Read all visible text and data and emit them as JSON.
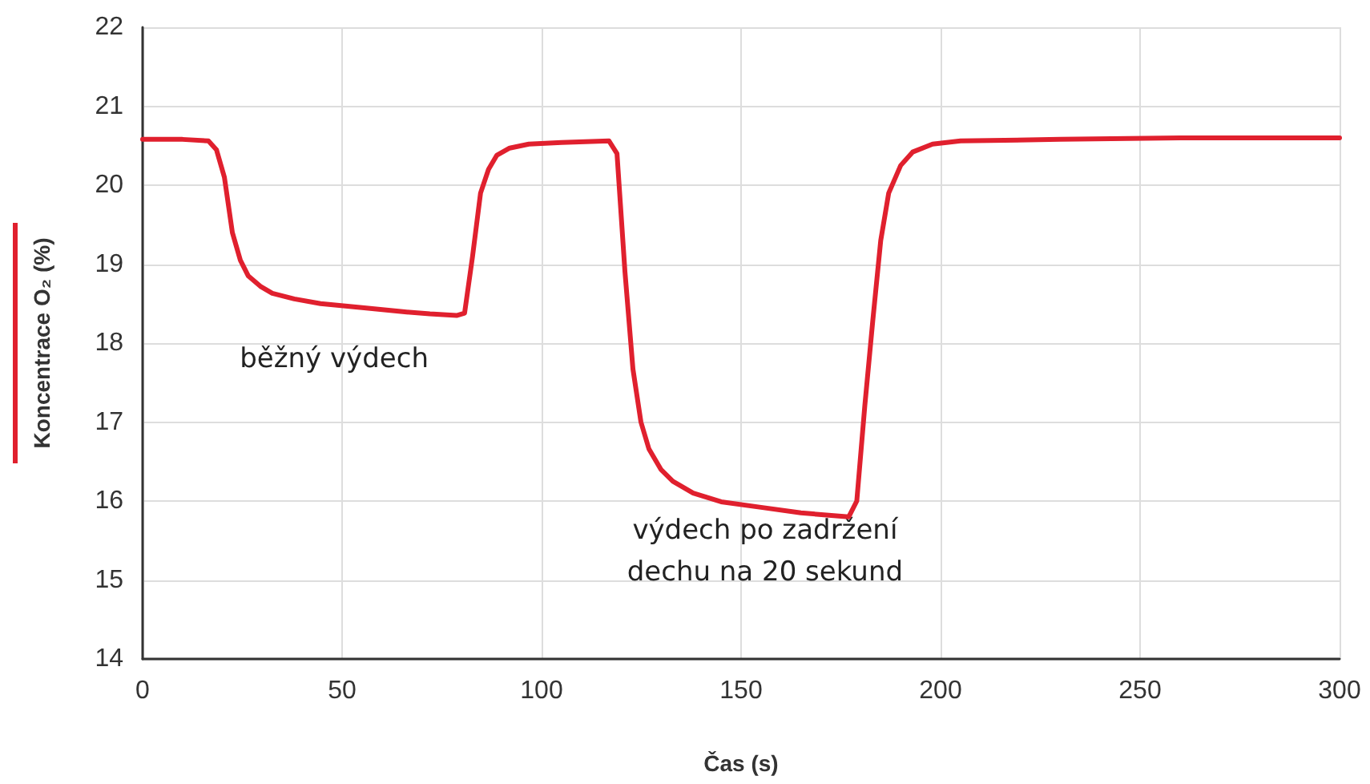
{
  "chart_data": {
    "type": "line",
    "xlabel": "Čas (s)",
    "ylabel": "Koncentrace O₂ (%)",
    "xlim": [
      0,
      300
    ],
    "xticks": [
      0,
      50,
      100,
      150,
      200,
      250,
      300
    ],
    "ylim": [
      14,
      22
    ],
    "yticks": [
      14,
      15,
      16,
      17,
      18,
      19,
      20,
      21,
      22
    ],
    "grid": true,
    "marker": "none",
    "line_style": "solid",
    "annotations": [
      "běžný výdech",
      "výdech po zadržení\ndechu na 20 sekund"
    ],
    "series": [
      {
        "color": "#e0202e",
        "x": [
          0,
          10,
          16.5,
          18.5,
          20.5,
          22.5,
          24.5,
          26.5,
          29.5,
          32.5,
          38,
          44.6,
          55,
          64.7,
          72,
          78.7,
          80.7,
          82.7,
          84.7,
          86.7,
          88.8,
          92,
          96.8,
          105,
          116.9,
          118.9,
          120.9,
          122.9,
          124.9,
          126.9,
          129.9,
          132.9,
          138,
          145,
          155,
          165,
          172,
          177,
          179,
          181,
          183,
          185,
          187,
          190,
          193,
          198,
          205,
          230,
          260,
          300
        ],
        "values": [
          20.58,
          20.58,
          20.56,
          20.45,
          20.1,
          19.4,
          19.05,
          18.85,
          18.72,
          18.63,
          18.56,
          18.5,
          18.45,
          18.4,
          18.37,
          18.35,
          18.38,
          19.1,
          19.9,
          20.2,
          20.38,
          20.47,
          20.52,
          20.54,
          20.56,
          20.4,
          18.9,
          17.67,
          17.0,
          16.66,
          16.4,
          16.25,
          16.1,
          15.99,
          15.92,
          15.85,
          15.82,
          15.8,
          16.0,
          17.2,
          18.28,
          19.3,
          19.9,
          20.25,
          20.42,
          20.52,
          20.56,
          20.58,
          20.6,
          20.6
        ]
      }
    ]
  }
}
